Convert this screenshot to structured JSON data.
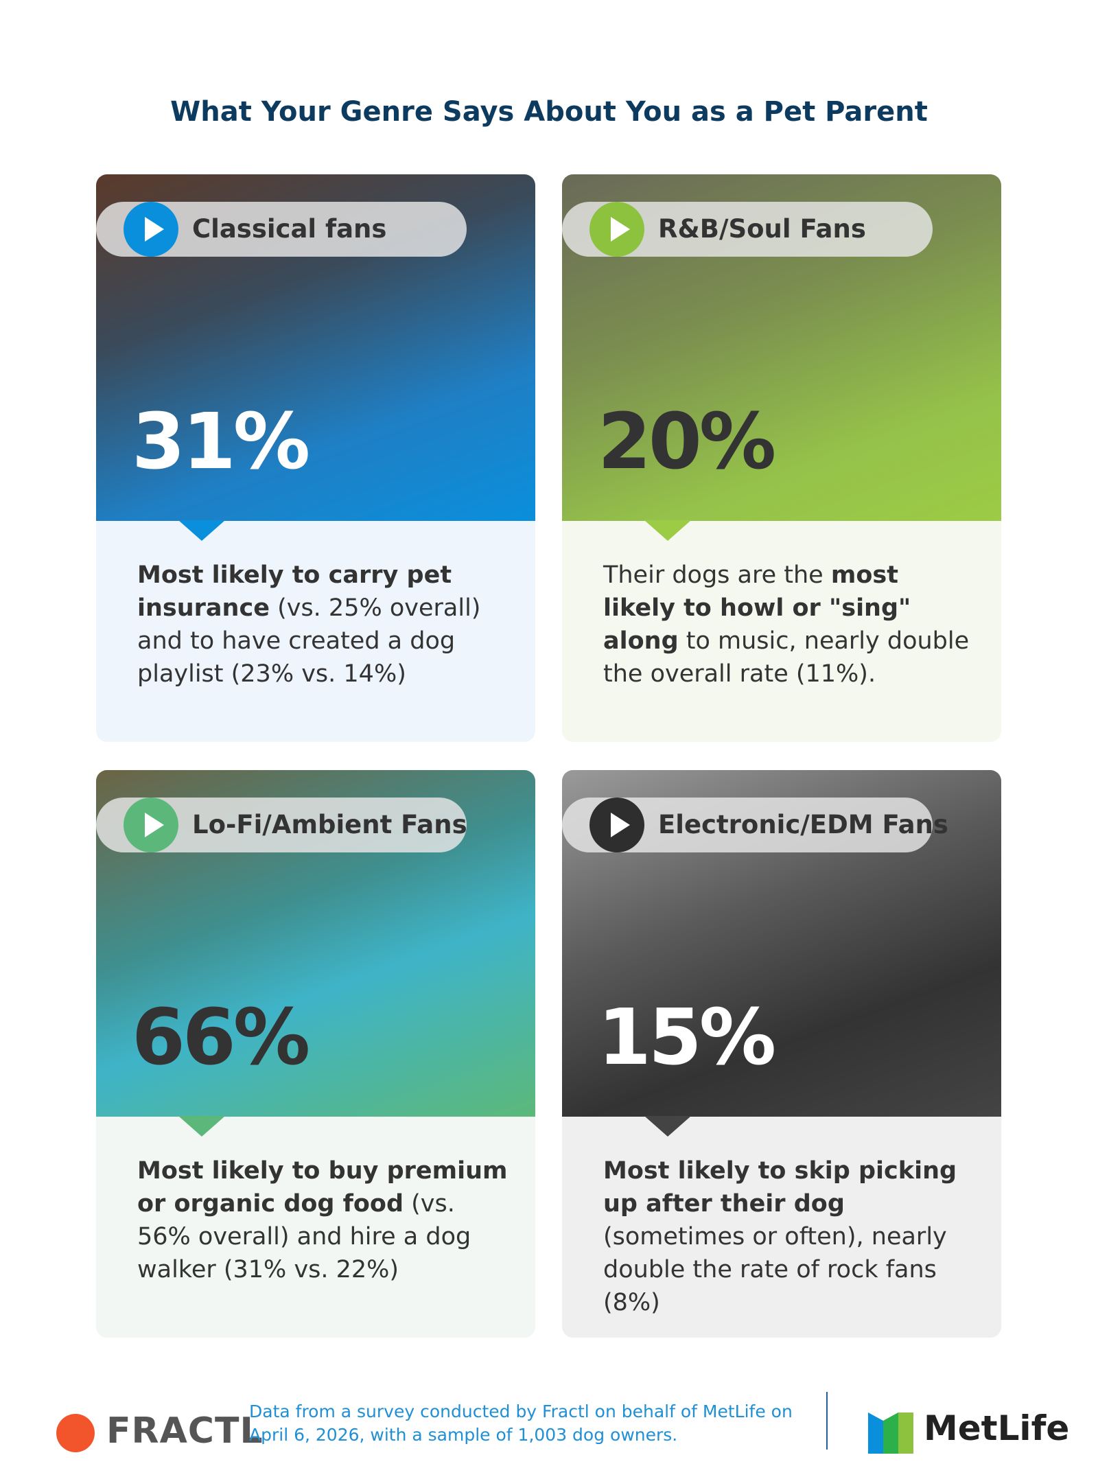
{
  "title": "What Your Genre Says About You as a Pet Parent",
  "cards": [
    {
      "label": "Classical fans",
      "stat": "31%",
      "theme": "blue",
      "description": [
        {
          "text": "Most likely to carry pet insurance",
          "bold": true
        },
        {
          "text": " (vs. 25% overall) and to have created a dog playlist (23% vs. 14%)",
          "bold": false
        }
      ]
    },
    {
      "label": "R&B/Soul Fans",
      "stat": "20%",
      "theme": "lime",
      "description": [
        {
          "text": "Their dogs are the ",
          "bold": false
        },
        {
          "text": "most likely to howl or \"sing\" along",
          "bold": true
        },
        {
          "text": " to music, nearly double the overall rate (11%).",
          "bold": false
        }
      ]
    },
    {
      "label": "Lo-Fi/Ambient Fans",
      "stat": "66%",
      "theme": "teal",
      "description": [
        {
          "text": "Most likely to buy premium or organic dog food",
          "bold": true
        },
        {
          "text": " (vs. 56% overall) and hire a dog walker (31% vs. 22%)",
          "bold": false
        }
      ]
    },
    {
      "label": "Electronic/EDM Fans",
      "stat": "15%",
      "theme": "gray",
      "description": [
        {
          "text": "Most likely to skip picking up after their dog",
          "bold": true
        },
        {
          "text": " (sometimes or often), nearly double the rate of rock fans (8%)",
          "bold": false
        }
      ]
    }
  ],
  "footer": {
    "brand_left": "FRACTL",
    "note": [
      "Data from a survey conducted by Fractl on behalf of MetLife on",
      "April 6, 2026, with a sample of 1,003 dog owners."
    ],
    "brand_right": "MetLife"
  }
}
